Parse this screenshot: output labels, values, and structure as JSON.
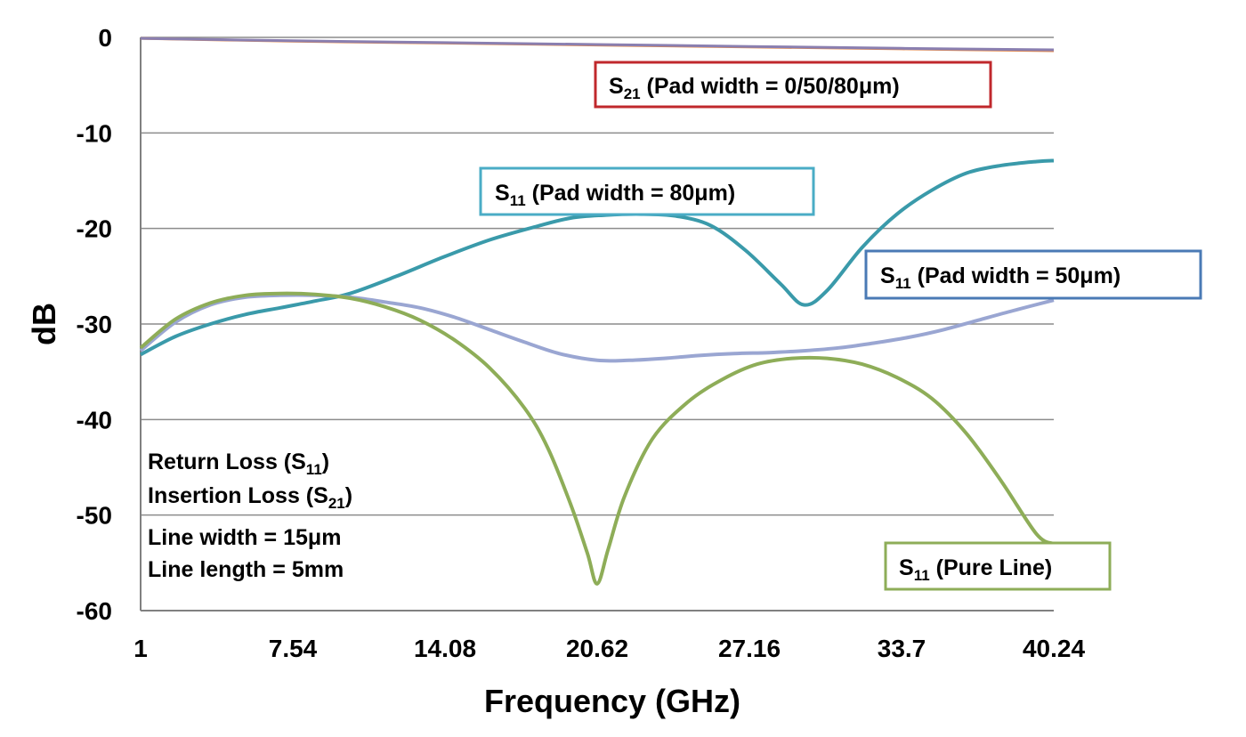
{
  "chart_data": {
    "type": "line",
    "title": "",
    "xlabel": "Frequency (GHz)",
    "ylabel": "dB",
    "xlim": [
      1,
      40.24
    ],
    "ylim": [
      -60,
      0
    ],
    "x_ticks": [
      "1",
      "7.54",
      "14.08",
      "20.62",
      "27.16",
      "33.7",
      "40.24"
    ],
    "y_ticks": [
      "0",
      "-10",
      "-20",
      "-30",
      "-40",
      "-50",
      "-60"
    ],
    "grid": true,
    "series": [
      {
        "name": "S21 (Pad width = 0/50/80μm)",
        "color": "#e4884a",
        "x": [
          1,
          7.54,
          14.08,
          20.62,
          27.16,
          33.7,
          40.24
        ],
        "y": [
          -0.1,
          -0.4,
          -0.6,
          -0.8,
          -1.0,
          -1.2,
          -1.4
        ]
      },
      {
        "name": "S21 (Pad width = 0/50/80μm) overlay",
        "color": "#8a7fb0",
        "x": [
          1,
          7.54,
          14.08,
          20.62,
          27.16,
          33.7,
          40.24
        ],
        "y": [
          -0.1,
          -0.35,
          -0.55,
          -0.75,
          -0.95,
          -1.15,
          -1.3
        ]
      },
      {
        "name": "S11 (Pad width = 80μm)",
        "color": "#3a9aaa",
        "x": [
          1,
          2.5,
          4,
          5.5,
          7,
          8.5,
          10,
          12,
          14,
          16,
          18,
          19.5,
          21,
          22.5,
          24,
          25.5,
          27,
          28.5,
          29.5,
          30.5,
          32,
          33.5,
          35,
          36.5,
          38,
          39.5,
          40.24
        ],
        "y": [
          -33.2,
          -31.3,
          -30.0,
          -29.0,
          -28.3,
          -27.6,
          -26.8,
          -25.0,
          -23.0,
          -21.2,
          -19.8,
          -18.9,
          -18.6,
          -18.5,
          -18.7,
          -19.7,
          -22.3,
          -25.8,
          -28.0,
          -26.5,
          -22.0,
          -18.5,
          -16.0,
          -14.2,
          -13.4,
          -13.0,
          -12.9
        ]
      },
      {
        "name": "S11 (Pad width = 50μm)",
        "color": "#9aa6d2",
        "x": [
          1,
          2.5,
          4,
          5.5,
          7,
          8.5,
          10,
          11.5,
          13,
          14.5,
          16,
          17.5,
          19,
          20.62,
          22,
          23.5,
          25,
          26.5,
          28,
          29.5,
          31,
          32.5,
          34,
          35.5,
          37,
          38.5,
          40.24
        ],
        "y": [
          -32.8,
          -29.8,
          -28.0,
          -27.2,
          -27.0,
          -27.0,
          -27.2,
          -27.7,
          -28.3,
          -29.3,
          -30.6,
          -31.9,
          -33.1,
          -33.8,
          -33.8,
          -33.6,
          -33.3,
          -33.1,
          -33.0,
          -32.8,
          -32.5,
          -32.0,
          -31.4,
          -30.6,
          -29.6,
          -28.6,
          -27.5
        ]
      },
      {
        "name": "S11 (Pure Line)",
        "color": "#8ead58",
        "x": [
          1,
          2.5,
          4,
          5.5,
          7,
          8.5,
          10,
          11.5,
          13,
          14.5,
          16,
          17.5,
          18.5,
          19.5,
          20.2,
          20.62,
          21.1,
          21.8,
          23,
          24.5,
          26,
          27.5,
          29,
          30.5,
          32,
          33.5,
          35,
          36.5,
          38,
          39.5,
          40.24
        ],
        "y": [
          -32.5,
          -29.5,
          -27.8,
          -27.0,
          -26.8,
          -26.9,
          -27.3,
          -28.2,
          -29.6,
          -31.7,
          -34.6,
          -38.8,
          -43.0,
          -49.0,
          -54.0,
          -57.2,
          -53.5,
          -48.0,
          -42.0,
          -38.2,
          -35.8,
          -34.2,
          -33.6,
          -33.6,
          -34.2,
          -35.6,
          -37.8,
          -41.5,
          -46.5,
          -52.0,
          -53.0
        ]
      }
    ],
    "annotations": {
      "s21": {
        "main": "S",
        "sub": "21",
        "rest": " (Pad width = 0/50/80μm)",
        "color": "#c0282c"
      },
      "s11_80": {
        "main": "S",
        "sub": "11",
        "rest": " (Pad width = 80μm)",
        "color": "#4aacc6"
      },
      "s11_50": {
        "main": "S",
        "sub": "11",
        "rest": " (Pad width = 50μm)",
        "color": "#4a7ab5"
      },
      "s11_pure": {
        "main": "S",
        "sub": "11",
        "rest": " (Pure Line)",
        "color": "#8ead58"
      }
    },
    "notes": {
      "return_loss": {
        "main": "Return Loss (S",
        "sub": "11",
        "end": ")"
      },
      "insertion_loss": {
        "main": "Insertion Loss (S",
        "sub": "21",
        "end": ")"
      },
      "line_width": "Line width = 15μm",
      "line_length": "Line length = 5mm"
    }
  }
}
